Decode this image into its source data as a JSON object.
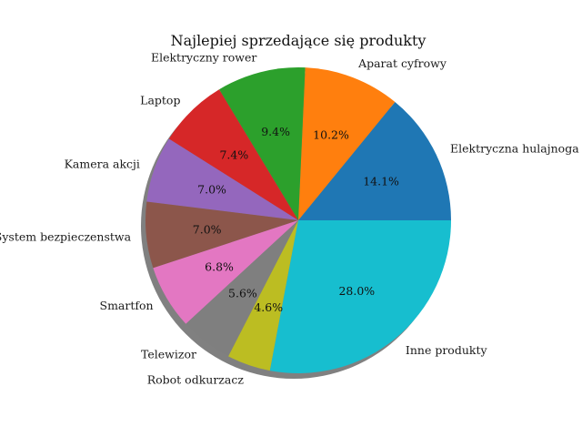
{
  "chart_data": {
    "type": "pie",
    "title": "Najlepiej sprzedające się produkty",
    "shadow": true,
    "start_angle_deg": 0,
    "direction": "counterclockwise",
    "slices": [
      {
        "label": "Elektryczna hulajnoga",
        "value": 14.1,
        "pct_label": "14.1%",
        "color": "#1f77b4"
      },
      {
        "label": "Aparat cyfrowy",
        "value": 10.2,
        "pct_label": "10.2%",
        "color": "#ff7f0e"
      },
      {
        "label": "Elektryczny rower",
        "value": 9.4,
        "pct_label": "9.4%",
        "color": "#2ca02c"
      },
      {
        "label": "Laptop",
        "value": 7.4,
        "pct_label": "7.4%",
        "color": "#d62728"
      },
      {
        "label": "Kamera akcji",
        "value": 7.0,
        "pct_label": "7.0%",
        "color": "#9467bd"
      },
      {
        "label": "System bezpieczenstwa",
        "value": 7.0,
        "pct_label": "7.0%",
        "color": "#8c564b"
      },
      {
        "label": "Smartfon",
        "value": 6.8,
        "pct_label": "6.8%",
        "color": "#e377c2"
      },
      {
        "label": "Telewizor",
        "value": 5.6,
        "pct_label": "5.6%",
        "color": "#7f7f7f"
      },
      {
        "label": "Robot odkurzacz",
        "value": 4.6,
        "pct_label": "4.6%",
        "color": "#bcbd22"
      },
      {
        "label": "Inne produkty",
        "value": 28.0,
        "pct_label": "28.0%",
        "color": "#17becf"
      }
    ]
  }
}
